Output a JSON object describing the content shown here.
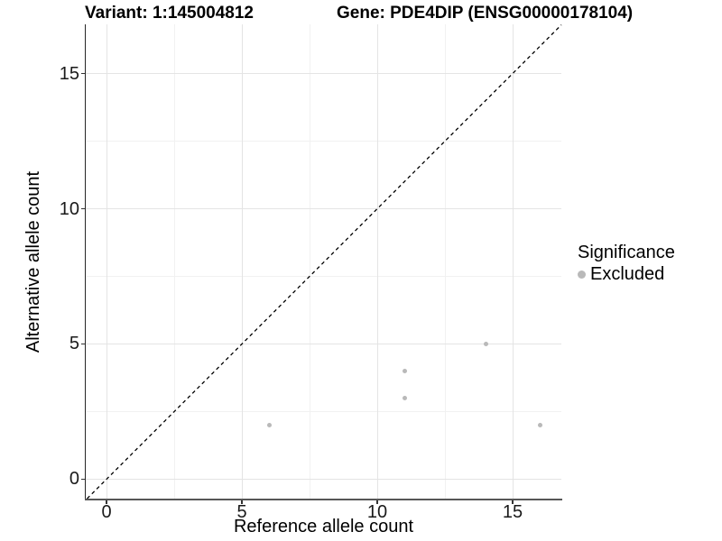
{
  "titles": {
    "variant": "Variant: 1:145004812",
    "gene": "Gene: PDE4DIP (ENSG00000178104)"
  },
  "chart_data": {
    "type": "scatter",
    "xlabel": "Reference allele count",
    "ylabel": "Alternative allele count",
    "xlim": [
      -0.77,
      16.8
    ],
    "ylim": [
      -0.72,
      16.82
    ],
    "x_ticks": [
      0,
      5,
      10,
      15
    ],
    "y_ticks": [
      0,
      5,
      10,
      15
    ],
    "x_minor_ticks": [
      2.5,
      7.5,
      12.5
    ],
    "y_minor_ticks": [
      2.5,
      7.5,
      12.5
    ],
    "grid": "on",
    "identity_line": {
      "style": "dashed",
      "slope": 1,
      "intercept": 0,
      "color": "#000000"
    },
    "series": [
      {
        "name": "Excluded",
        "color": "#b9b9b9",
        "points": [
          {
            "x": 6,
            "y": 2
          },
          {
            "x": 11,
            "y": 3
          },
          {
            "x": 11,
            "y": 4
          },
          {
            "x": 14,
            "y": 5
          },
          {
            "x": 16,
            "y": 2
          }
        ]
      }
    ],
    "legend": {
      "title": "Significance",
      "position": "right",
      "items": [
        {
          "label": "Excluded",
          "color": "#b9b9b9",
          "marker": "circle"
        }
      ]
    }
  }
}
